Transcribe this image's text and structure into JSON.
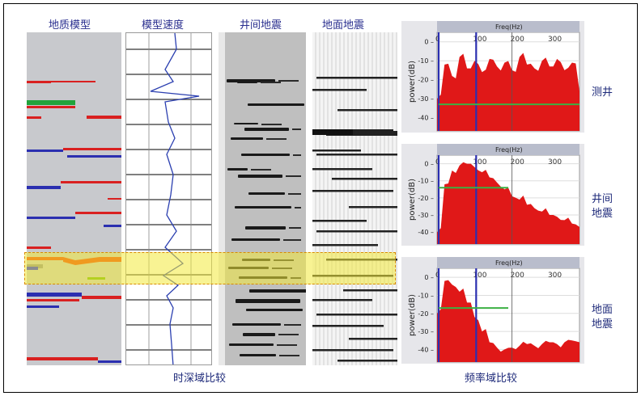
{
  "columns": {
    "geo_model": "地质模型",
    "velocity": "模型速度",
    "crosswell": "井间地震",
    "surface": "地面地震"
  },
  "captions": {
    "time_depth": "时深域比较",
    "frequency": "频率域比较"
  },
  "side_labels": {
    "well": "测井",
    "crosswell_l1": "井间",
    "crosswell_l2": "地震",
    "surface_l1": "地面",
    "surface_l2": "地震"
  },
  "colors": {
    "highlight": "#f2ea3a",
    "spectrum_fill": "#e01818",
    "band_marker": "#2b2fb0",
    "fit_line": "#3cb043",
    "model_bg": "#c8c9cd"
  },
  "chart_data": [
    {
      "type": "area",
      "panel": "well-log spectrum",
      "xlabel": "Freq(Hz)",
      "ylabel": "power(dB)",
      "xticks": [
        0,
        100,
        200,
        300
      ],
      "yticks": [
        0,
        -10,
        -20,
        -30,
        -40
      ],
      "xlim": [
        0,
        380
      ],
      "ylim": [
        -47,
        5
      ],
      "band_markers": [
        0,
        100
      ],
      "fit_level": -33,
      "series": [
        {
          "x": [
            0,
            20,
            40,
            60,
            80,
            100,
            120,
            140,
            160,
            180,
            200,
            220,
            240,
            260,
            280,
            300,
            320,
            340,
            360,
            380
          ],
          "values": [
            -30,
            -12,
            -18,
            -8,
            -14,
            -10,
            -16,
            -9,
            -13,
            -11,
            -15,
            -8,
            -12,
            -14,
            -10,
            -13,
            -9,
            -15,
            -11,
            -26
          ]
        }
      ]
    },
    {
      "type": "area",
      "panel": "crosswell spectrum",
      "xlabel": "Freq(Hz)",
      "ylabel": "power(dB)",
      "xticks": [
        0,
        100,
        200,
        300
      ],
      "yticks": [
        0,
        -10,
        -20,
        -30,
        -40
      ],
      "xlim": [
        0,
        380
      ],
      "ylim": [
        -47,
        5
      ],
      "band_markers": [
        0,
        100
      ],
      "fit_level": -14,
      "series": [
        {
          "x": [
            0,
            20,
            40,
            60,
            80,
            100,
            120,
            140,
            160,
            180,
            200,
            220,
            240,
            260,
            280,
            300,
            320,
            340,
            360,
            380
          ],
          "values": [
            -40,
            -12,
            -4,
            -1,
            0,
            -2,
            -5,
            -8,
            -11,
            -15,
            -19,
            -21,
            -24,
            -26,
            -28,
            -30,
            -31,
            -33,
            -35,
            -37
          ]
        }
      ]
    },
    {
      "type": "area",
      "panel": "surface seismic spectrum",
      "xlabel": "Freq(Hz)",
      "ylabel": "power(dB)",
      "xticks": [
        0,
        100,
        200,
        300
      ],
      "yticks": [
        0,
        -10,
        -20,
        -30,
        -40
      ],
      "xlim": [
        0,
        380
      ],
      "ylim": [
        -47,
        5
      ],
      "band_markers": [
        0,
        100
      ],
      "fit_level": -17,
      "series": [
        {
          "x": [
            0,
            20,
            40,
            60,
            80,
            100,
            120,
            140,
            160,
            180,
            200,
            220,
            240,
            260,
            280,
            300,
            320,
            340,
            360,
            380
          ],
          "values": [
            -20,
            -2,
            -4,
            -8,
            -14,
            -22,
            -30,
            -36,
            -39,
            -40,
            -39,
            -38,
            -37,
            -38,
            -37,
            -36,
            -37,
            -36,
            -35,
            -36
          ]
        }
      ]
    }
  ]
}
